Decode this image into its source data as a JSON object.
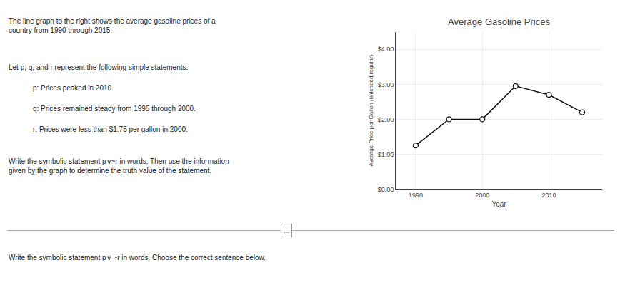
{
  "chart_data": {
    "type": "line",
    "title": "Average Gasoline Prices",
    "xlabel": "Year",
    "ylabel": "Average Price per Gallon (unleaded regular)",
    "x": [
      1990,
      1995,
      2000,
      2005,
      2010,
      2015
    ],
    "values": [
      1.25,
      2.0,
      2.0,
      2.95,
      2.7,
      2.2
    ],
    "color": "#111111",
    "marker": "circle",
    "xlim": [
      1987,
      2018
    ],
    "xticks": [
      1990,
      2000,
      2010
    ],
    "ylim": [
      0.0,
      4.5
    ],
    "yticks": [
      {
        "value": 0.0,
        "label": "$0.00"
      },
      {
        "value": 1.0,
        "label": "$1.00"
      },
      {
        "value": 2.0,
        "label": "$2.00"
      },
      {
        "value": 3.0,
        "label": "$3.00"
      },
      {
        "value": 4.0,
        "label": "$4.00"
      }
    ],
    "grid": true,
    "annotations": [
      "The line graph to the right shows the average gasoline prices of a\ncountry from 1990 through 2015.",
      "Let p, q, and r represent the following simple statements.",
      "p: Prices peaked in 2010.",
      "q: Prices remained steady from 1995 through 2000.",
      "r: Prices were less than $1.75 per gallon in 2000.",
      "Write the symbolic statement p∨~r in words. Then use the information\ngiven by the graph to determine the truth value of the statement.",
      "...",
      "Write the symbolic statement p∨ ~r in words. Choose the correct sentence below."
    ]
  }
}
